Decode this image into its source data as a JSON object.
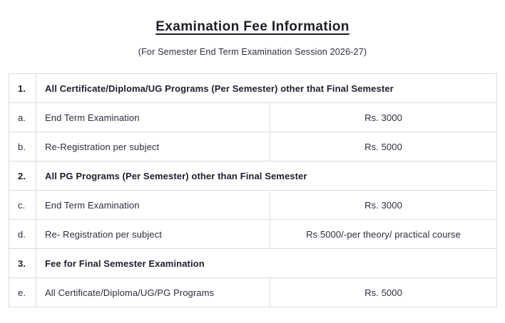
{
  "page": {
    "title": "Examination Fee Information",
    "subtitle": "(For Semester End Term Examination Session 2026-27)"
  },
  "table": {
    "rows": [
      {
        "type": "section",
        "index": "1.",
        "label": "All Certificate/Diploma/UG Programs (Per Semester) other that Final Semester"
      },
      {
        "type": "item",
        "index": "a.",
        "label": "End Term Examination",
        "fee": "Rs. 3000"
      },
      {
        "type": "item",
        "index": "b.",
        "label": "Re-Registration per subject",
        "fee": "Rs. 5000"
      },
      {
        "type": "section",
        "index": "2.",
        "label": "All PG Programs (Per Semester) other than Final Semester"
      },
      {
        "type": "item",
        "index": "c.",
        "label": "End Term Examination",
        "fee": "Rs. 3000"
      },
      {
        "type": "item",
        "index": "d.",
        "label": "Re- Registration per subject",
        "fee": "Rs 5000/-per theory/ practical course"
      },
      {
        "type": "section",
        "index": "3.",
        "label": "Fee for Final Semester Examination"
      },
      {
        "type": "item",
        "index": "e.",
        "label": "All Certificate/Diploma/UG/PG Programs",
        "fee": "Rs. 5000"
      }
    ]
  },
  "colors": {
    "text": "#2d2d3f",
    "heading": "#1d1d29",
    "border": "#dcdcdc",
    "background": "#ffffff"
  }
}
